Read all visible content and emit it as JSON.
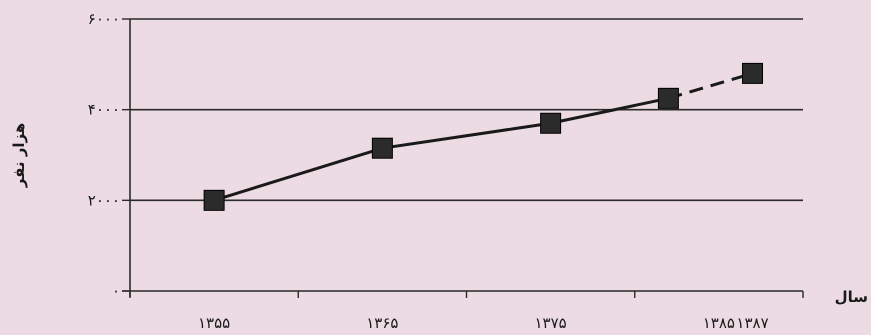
{
  "chart_data": {
    "type": "line",
    "title": "",
    "xlabel": "سال",
    "ylabel": "هزار نفر",
    "xlim": [
      1350,
      1390
    ],
    "ylim": [
      0,
      6000
    ],
    "grid": true,
    "y_ticks": [
      {
        "value": 0,
        "label": "۰"
      },
      {
        "value": 2000,
        "label": "۲۰۰۰"
      },
      {
        "value": 4000,
        "label": "۴۰۰۰"
      },
      {
        "value": 6000,
        "label": "۶۰۰۰"
      }
    ],
    "x_ticks": [
      {
        "value": 1355,
        "label": "۱۳۵۵"
      },
      {
        "value": 1365,
        "label": "۱۳۶۵"
      },
      {
        "value": 1375,
        "label": "۱۳۷۵"
      },
      {
        "value": 1385,
        "label": "۱۳۸۵"
      },
      {
        "value": 1387,
        "label": "۱۳۸۷"
      }
    ],
    "x_minor_ticks": [
      1350,
      1360,
      1370,
      1380,
      1390
    ],
    "series": [
      {
        "points": [
          {
            "x": 1355,
            "y": 2000
          },
          {
            "x": 1365,
            "y": 3150
          },
          {
            "x": 1375,
            "y": 3700
          },
          {
            "x": 1382,
            "y": 4250
          },
          {
            "x": 1387,
            "y": 4800
          }
        ],
        "dashed_from_index": 3,
        "color": "#1a1a1a",
        "marker": "square"
      }
    ]
  }
}
